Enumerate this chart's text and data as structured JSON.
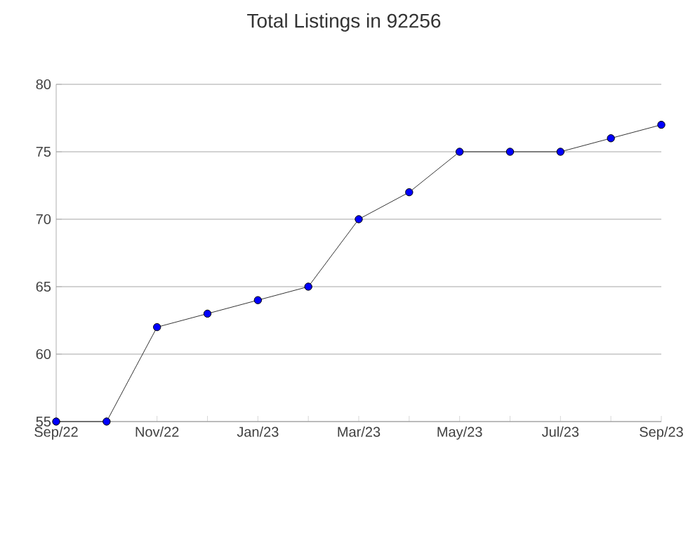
{
  "chart_data": {
    "type": "line",
    "title": "Total Listings in 92256",
    "categories": [
      "Sep/22",
      null,
      "Nov/22",
      null,
      "Jan/23",
      null,
      "Mar/23",
      null,
      "May/23",
      null,
      "Jul/23",
      null,
      "Sep/23"
    ],
    "series": [
      {
        "color": "#0000ff",
        "values": [
          55,
          55,
          62,
          63,
          64,
          65,
          70,
          72,
          75,
          75,
          75,
          76,
          77
        ]
      }
    ],
    "ylim": [
      55,
      80
    ],
    "yticks": [
      55,
      60,
      65,
      70,
      75,
      80
    ],
    "grid": "y",
    "marker": "circle",
    "line_style": "solid"
  }
}
